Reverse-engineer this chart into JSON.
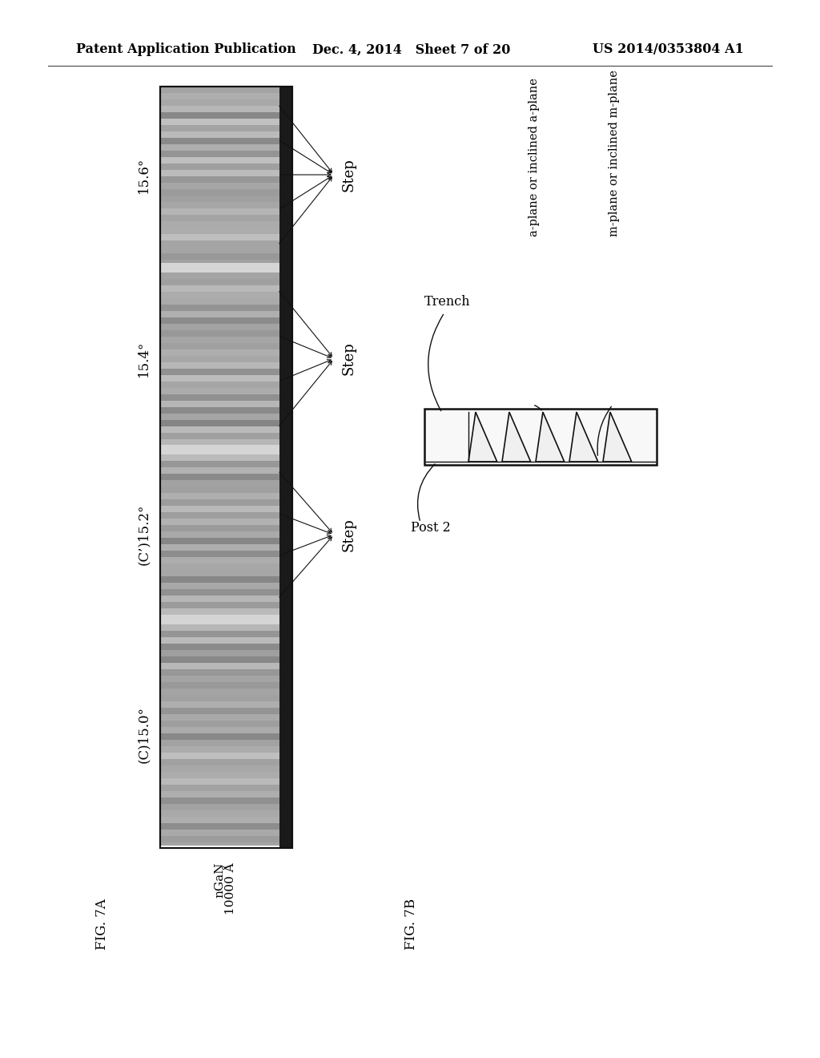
{
  "header_left": "Patent Application Publication",
  "header_mid": "Dec. 4, 2014   Sheet 7 of 20",
  "header_right": "US 2014/0353804 A1",
  "fig7a_label": "FIG. 7A",
  "fig7b_label": "FIG. 7B",
  "scale_label_line1": "nGaN",
  "scale_label_line2": "10000 Å",
  "section_labels": [
    "15.6°",
    "15.4°",
    "(C’)15.2°",
    "(C)15.0°"
  ],
  "trench_label": "Trench",
  "post_label": "Post 2",
  "aplane_label": "a-plane or inclined a-plane",
  "mplane_label": "m-plane or inclined m-plane",
  "bg_color": "#ffffff",
  "text_color": "#000000"
}
